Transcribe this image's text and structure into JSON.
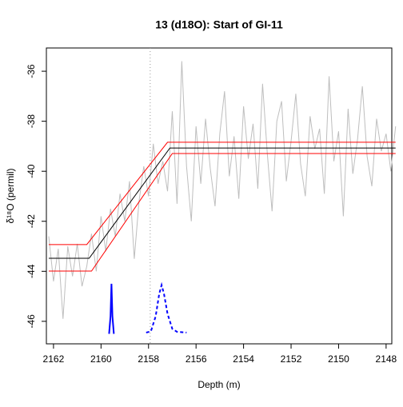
{
  "chart_data": {
    "type": "line",
    "title": "13 (d18O): Start of GI-11",
    "xlabel": "Depth (m)",
    "ylabel": "δ¹⁸O (permil)",
    "xlim": [
      2162.3,
      2147.76
    ],
    "ylim": [
      -46.9,
      -35.07
    ],
    "xticks": [
      2162,
      2160,
      2158,
      2156,
      2154,
      2152,
      2150,
      2148
    ],
    "yticks": [
      -46,
      -44,
      -42,
      -40,
      -38,
      -36
    ],
    "vline": {
      "x": 2157.93,
      "color": "#999999",
      "linestyle": "dotted"
    },
    "series": [
      {
        "color": "#bebebe",
        "linestyle": "solid",
        "width": 1,
        "x": [
          2162.2,
          2162.0,
          2161.8,
          2161.6,
          2161.4,
          2161.2,
          2161.0,
          2160.8,
          2160.6,
          2160.4,
          2160.2,
          2160.0,
          2159.8,
          2159.6,
          2159.4,
          2159.2,
          2159.0,
          2158.8,
          2158.6,
          2158.4,
          2158.2,
          2158.0,
          2157.8,
          2157.6,
          2157.4,
          2157.2,
          2157.0,
          2156.8,
          2156.6,
          2156.4,
          2156.2,
          2156.0,
          2155.8,
          2155.6,
          2155.4,
          2155.2,
          2155.0,
          2154.8,
          2154.6,
          2154.4,
          2154.2,
          2154.0,
          2153.8,
          2153.6,
          2153.4,
          2153.2,
          2153.0,
          2152.8,
          2152.6,
          2152.4,
          2152.2,
          2152.0,
          2151.8,
          2151.6,
          2151.4,
          2151.2,
          2151.0,
          2150.8,
          2150.6,
          2150.4,
          2150.2,
          2150.0,
          2149.8,
          2149.6,
          2149.4,
          2149.2,
          2149.0,
          2148.8,
          2148.6,
          2148.4,
          2148.2,
          2148.0,
          2147.8,
          2147.6
        ],
        "values": [
          -42.6,
          -44.4,
          -43.1,
          -45.9,
          -43.0,
          -44.2,
          -42.9,
          -44.6,
          -43.8,
          -42.5,
          -44.0,
          -41.8,
          -43.2,
          -41.5,
          -42.6,
          -40.9,
          -42.0,
          -40.4,
          -43.5,
          -41.2,
          -39.8,
          -41.0,
          -38.9,
          -40.5,
          -39.6,
          -40.8,
          -37.6,
          -41.3,
          -35.6,
          -39.8,
          -42.0,
          -38.2,
          -40.5,
          -37.9,
          -39.9,
          -41.4,
          -38.5,
          -36.8,
          -40.2,
          -38.6,
          -41.1,
          -37.4,
          -39.5,
          -38.1,
          -40.7,
          -36.5,
          -39.3,
          -41.6,
          -38.0,
          -37.2,
          -40.4,
          -38.8,
          -36.9,
          -39.7,
          -41.0,
          -37.8,
          -39.1,
          -38.3,
          -40.9,
          -36.2,
          -39.6,
          -38.4,
          -41.8,
          -37.5,
          -40.1,
          -38.7,
          -36.6,
          -39.4,
          -40.6,
          -37.9,
          -39.2,
          -38.5,
          -40.0,
          -38.2
        ]
      },
      {
        "color": "#ff0000",
        "linestyle": "solid",
        "width": 1,
        "x": [
          2162.2,
          2160.6,
          2157.2,
          2147.6
        ],
        "values": [
          -42.93,
          -42.93,
          -38.84,
          -38.84
        ]
      },
      {
        "color": "#ff0000",
        "linestyle": "solid",
        "width": 1,
        "x": [
          2162.2,
          2160.4,
          2157.0,
          2147.6
        ],
        "values": [
          -43.99,
          -43.99,
          -39.29,
          -39.29
        ]
      },
      {
        "color": "#000000",
        "linestyle": "solid",
        "width": 1,
        "x": [
          2162.2,
          2160.5,
          2157.1,
          2147.6
        ],
        "values": [
          -43.48,
          -43.48,
          -39.07,
          -39.07
        ]
      },
      {
        "color": "#0000ff",
        "linestyle": "solid",
        "width": 2,
        "x": [
          2159.66,
          2159.6,
          2159.56,
          2159.52,
          2159.46
        ],
        "values": [
          -46.5,
          -45.8,
          -44.5,
          -45.8,
          -46.5
        ]
      },
      {
        "color": "#0000ff",
        "linestyle": "dashed",
        "width": 2,
        "x": [
          2158.1,
          2157.9,
          2157.7,
          2157.55,
          2157.45,
          2157.35,
          2157.2,
          2157.0,
          2156.8,
          2156.4
        ],
        "values": [
          -46.45,
          -46.4,
          -45.8,
          -44.9,
          -44.55,
          -44.9,
          -45.7,
          -46.3,
          -46.42,
          -46.45
        ]
      }
    ]
  }
}
